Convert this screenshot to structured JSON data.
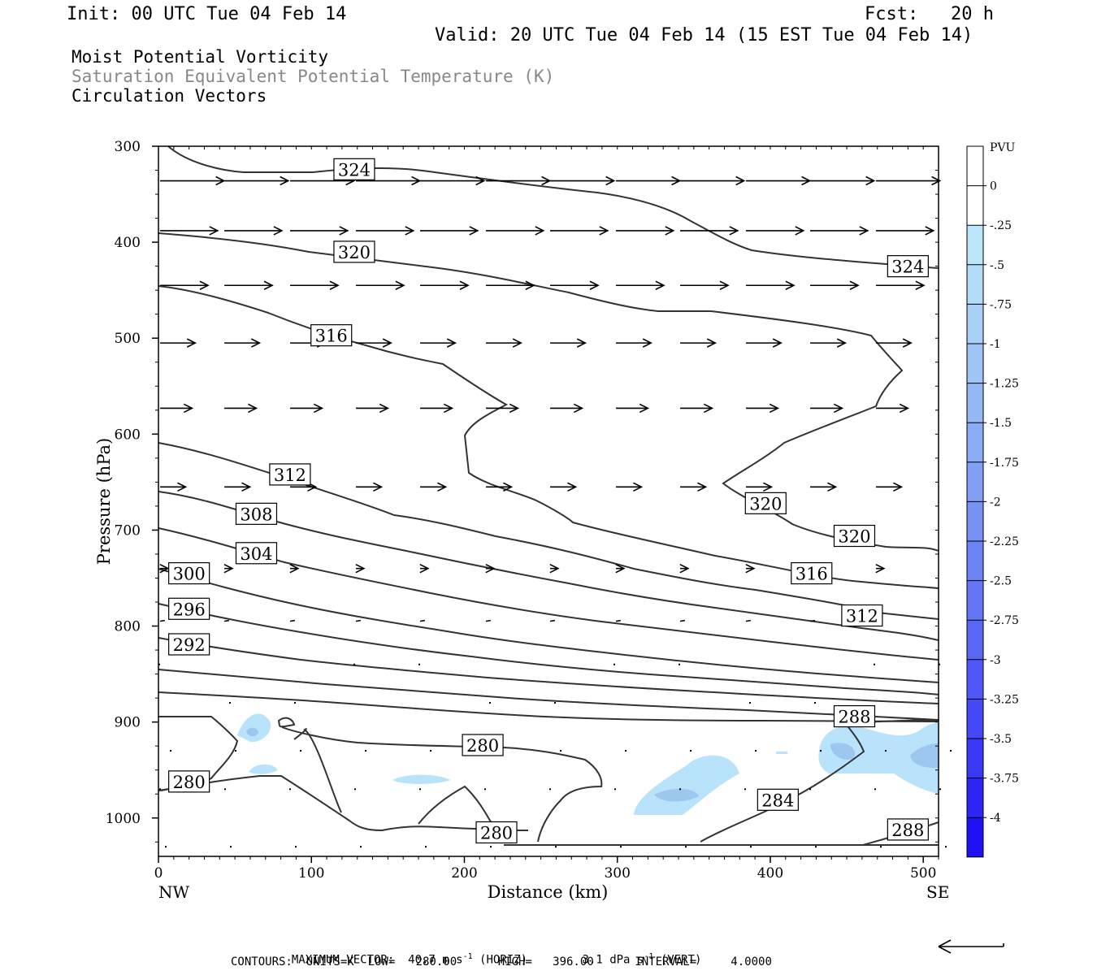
{
  "header": {
    "init": "Init: 00 UTC Tue 04 Feb 14",
    "fcst": "Fcst:   20 h",
    "valid": "Valid: 20 UTC Tue 04 Feb 14 (15 EST Tue 04 Feb 14)"
  },
  "fields": {
    "line1": "Moist Potential Vorticity",
    "line2": "Saturation Equivalent Potential Temperature (K)",
    "line3": "Circulation Vectors"
  },
  "colors": {
    "field2_text": "#888888",
    "contour": "#333333",
    "pv_light": "#b9e3fa",
    "pv_medium": "#9cc8f0"
  },
  "chart_data": {
    "type": "contour",
    "xlabel": "Distance (km)",
    "ylabel": "Pressure (hPa)",
    "xlim": [
      0,
      510
    ],
    "ylim": [
      1040,
      300
    ],
    "x_ticks": [
      0,
      100,
      200,
      300,
      400,
      500
    ],
    "y_ticks": [
      300,
      400,
      500,
      600,
      700,
      800,
      900,
      1000
    ],
    "x_end_labels": {
      "left": "NW",
      "right": "SE"
    },
    "contour_labels": [
      {
        "text": "324",
        "x": 128,
        "p": 324
      },
      {
        "text": "320",
        "x": 128,
        "p": 410
      },
      {
        "text": "324",
        "x": 490,
        "p": 425
      },
      {
        "text": "316",
        "x": 113,
        "p": 497
      },
      {
        "text": "312",
        "x": 86,
        "p": 642
      },
      {
        "text": "308",
        "x": 64,
        "p": 683
      },
      {
        "text": "320",
        "x": 397,
        "p": 672
      },
      {
        "text": "320",
        "x": 455,
        "p": 706
      },
      {
        "text": "304",
        "x": 64,
        "p": 724
      },
      {
        "text": "316",
        "x": 427,
        "p": 745
      },
      {
        "text": "300",
        "x": 20,
        "p": 745
      },
      {
        "text": "296",
        "x": 20,
        "p": 782
      },
      {
        "text": "312",
        "x": 460,
        "p": 789
      },
      {
        "text": "292",
        "x": 20,
        "p": 819
      },
      {
        "text": "288",
        "x": 455,
        "p": 894
      },
      {
        "text": "280",
        "x": 212,
        "p": 924
      },
      {
        "text": "280",
        "x": 20,
        "p": 962
      },
      {
        "text": "284",
        "x": 405,
        "p": 981
      },
      {
        "text": "288",
        "x": 490,
        "p": 1012
      },
      {
        "text": "280",
        "x": 221,
        "p": 1015
      }
    ],
    "colorbar": {
      "title": "PVU",
      "labels": [
        "0",
        "-.25",
        "-.5",
        "-.75",
        "-1",
        "-1.25",
        "-1.5",
        "-1.75",
        "-2",
        "-2.25",
        "-2.5",
        "-2.75",
        "-3",
        "-3.25",
        "-3.5",
        "-3.75",
        "-4"
      ],
      "colors": [
        "#ffffff",
        "#ffffff",
        "#bde6fb",
        "#b3dcf9",
        "#a9d1f7",
        "#9fc4f6",
        "#95b8f5",
        "#8cabf5",
        "#829ef5",
        "#7891f5",
        "#6e83f5",
        "#6475f5",
        "#5a67f5",
        "#4f58f5",
        "#4548f5",
        "#3a38f5",
        "#2f26f5",
        "#1f10f5"
      ]
    },
    "vectors": [
      {
        "p": 336,
        "xs": [
          0,
          42,
          85,
          128,
          170,
          213,
          255,
          298,
          340,
          383,
          425,
          468
        ],
        "u": 40,
        "w": 0
      },
      {
        "p": 388,
        "xs": [
          0,
          42,
          85,
          128,
          170,
          213,
          255,
          298,
          340,
          383,
          425,
          468
        ],
        "u": 36,
        "w": 0
      },
      {
        "p": 445,
        "xs": [
          0,
          42,
          85,
          128,
          170,
          213,
          255,
          298,
          340,
          383,
          425,
          468
        ],
        "u": 30,
        "w": 0
      },
      {
        "p": 505,
        "xs": [
          0,
          42,
          85,
          128,
          170,
          213,
          255,
          298,
          340,
          383,
          425,
          468
        ],
        "u": 22,
        "w": 0
      },
      {
        "p": 573,
        "xs": [
          0,
          42,
          85,
          128,
          170,
          213,
          255,
          298,
          340,
          383,
          425,
          468
        ],
        "u": 20,
        "w": 0
      },
      {
        "p": 655,
        "xs": [
          0,
          42,
          85,
          128,
          170,
          213,
          255,
          298,
          340,
          383,
          425,
          468
        ],
        "u": 16,
        "w": 0
      },
      {
        "p": 740,
        "xs": [
          0,
          42,
          85,
          128,
          170,
          213,
          255,
          298,
          340,
          383,
          425,
          468
        ],
        "u": 5,
        "w": 0
      },
      {
        "p": 795,
        "xs": [
          0,
          42,
          85,
          128,
          170,
          213,
          255,
          298,
          340,
          383,
          425,
          468
        ],
        "u": 3,
        "w": 0
      }
    ]
  },
  "footer": {
    "max_vector_prefix": "MAXIMUM VECTOR:  40.7 m s",
    "max_vector_exp1": "-1",
    "max_vector_mid": " (HORIZ)        3.1 dPa s",
    "max_vector_exp2": "-1",
    "max_vector_end": " (VERT)",
    "contours": "CONTOURS:  UNITS=K  LOW=   280.00      HIGH=   396.00      INTERVAL=     4.0000"
  }
}
